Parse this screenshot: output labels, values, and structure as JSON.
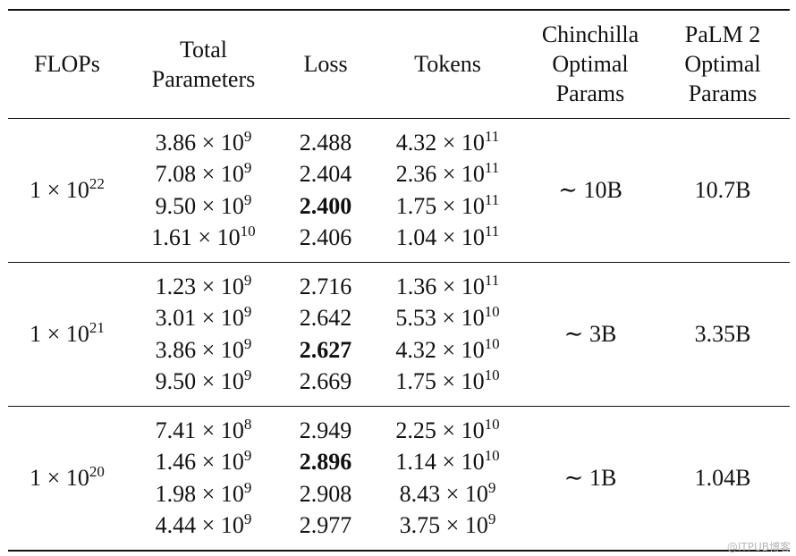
{
  "headers": {
    "flops": "FLOPs",
    "params": [
      "Total",
      "Parameters"
    ],
    "loss": "Loss",
    "tokens": "Tokens",
    "chinchilla": [
      "Chinchilla",
      "Optimal",
      "Params"
    ],
    "palm": [
      "PaLM 2",
      "Optimal",
      "Params"
    ]
  },
  "groups": [
    {
      "flops": {
        "mantissa": "1 × 10",
        "exp": "22"
      },
      "rows": [
        {
          "params": {
            "m": "3.86 × 10",
            "e": "9"
          },
          "loss": "2.488",
          "tokens": {
            "m": "4.32 × 10",
            "e": "11"
          },
          "best": false
        },
        {
          "params": {
            "m": "7.08 × 10",
            "e": "9"
          },
          "loss": "2.404",
          "tokens": {
            "m": "2.36 × 10",
            "e": "11"
          },
          "best": false
        },
        {
          "params": {
            "m": "9.50 × 10",
            "e": "9"
          },
          "loss": "2.400",
          "tokens": {
            "m": "1.75 × 10",
            "e": "11"
          },
          "best": true
        },
        {
          "params": {
            "m": "1.61 × 10",
            "e": "10"
          },
          "loss": "2.406",
          "tokens": {
            "m": "1.04 × 10",
            "e": "11"
          },
          "best": false
        }
      ],
      "chinchilla": "∼ 10B",
      "palm": "10.7B"
    },
    {
      "flops": {
        "mantissa": "1 × 10",
        "exp": "21"
      },
      "rows": [
        {
          "params": {
            "m": "1.23 × 10",
            "e": "9"
          },
          "loss": "2.716",
          "tokens": {
            "m": "1.36 × 10",
            "e": "11"
          },
          "best": false
        },
        {
          "params": {
            "m": "3.01 × 10",
            "e": "9"
          },
          "loss": "2.642",
          "tokens": {
            "m": "5.53 × 10",
            "e": "10"
          },
          "best": false
        },
        {
          "params": {
            "m": "3.86 × 10",
            "e": "9"
          },
          "loss": "2.627",
          "tokens": {
            "m": "4.32 × 10",
            "e": "10"
          },
          "best": true
        },
        {
          "params": {
            "m": "9.50 × 10",
            "e": "9"
          },
          "loss": "2.669",
          "tokens": {
            "m": "1.75 × 10",
            "e": "10"
          },
          "best": false
        }
      ],
      "chinchilla": "∼ 3B",
      "palm": "3.35B"
    },
    {
      "flops": {
        "mantissa": "1 × 10",
        "exp": "20"
      },
      "rows": [
        {
          "params": {
            "m": "7.41 × 10",
            "e": "8"
          },
          "loss": "2.949",
          "tokens": {
            "m": "2.25 × 10",
            "e": "10"
          },
          "best": false
        },
        {
          "params": {
            "m": "1.46 × 10",
            "e": "9"
          },
          "loss": "2.896",
          "tokens": {
            "m": "1.14 × 10",
            "e": "10"
          },
          "best": true
        },
        {
          "params": {
            "m": "1.98 × 10",
            "e": "9"
          },
          "loss": "2.908",
          "tokens": {
            "m": "8.43 × 10",
            "e": "9"
          },
          "best": false
        },
        {
          "params": {
            "m": "4.44 × 10",
            "e": "9"
          },
          "loss": "2.977",
          "tokens": {
            "m": "3.75 × 10",
            "e": "9"
          },
          "best": false
        }
      ],
      "chinchilla": "∼ 1B",
      "palm": "1.04B"
    }
  ],
  "watermark": "@ITPUB博客"
}
